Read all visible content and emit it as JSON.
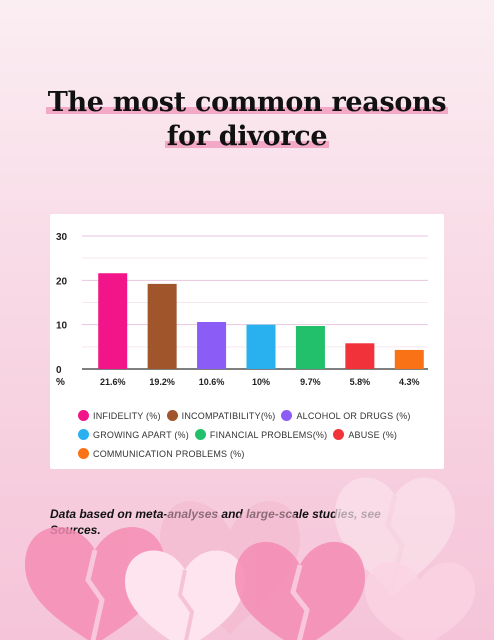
{
  "title_line1": "The most common reasons",
  "title_line2": "for divorce",
  "footnote": "Data based on meta-analyses and large-scale studies, see Sources.",
  "chart_data": {
    "type": "bar",
    "categories": [
      "INFIDELITY (%)",
      "INCOMPATIBILITY(%)",
      "ALCOHOL OR DRUGS (%)",
      "GROWING APART (%)",
      "FINANCIAL PROBLEMS(%)",
      "ABUSE (%)",
      "COMMUNICATION PROBLEMS (%)"
    ],
    "values": [
      21.6,
      19.2,
      10.6,
      10,
      9.7,
      5.8,
      4.3
    ],
    "value_labels": [
      "21.6%",
      "19.2%",
      "10.6%",
      "10%",
      "9.7%",
      "5.8%",
      "4.3%"
    ],
    "colors": [
      "#f2158a",
      "#a0562a",
      "#8b5cf6",
      "#29b0ee",
      "#22c06a",
      "#f2323a",
      "#f97316"
    ],
    "ylim": [
      0,
      30
    ],
    "yticks": [
      0,
      10,
      20,
      30
    ],
    "ylabel": "%",
    "grid": true,
    "legend_position": "bottom"
  }
}
